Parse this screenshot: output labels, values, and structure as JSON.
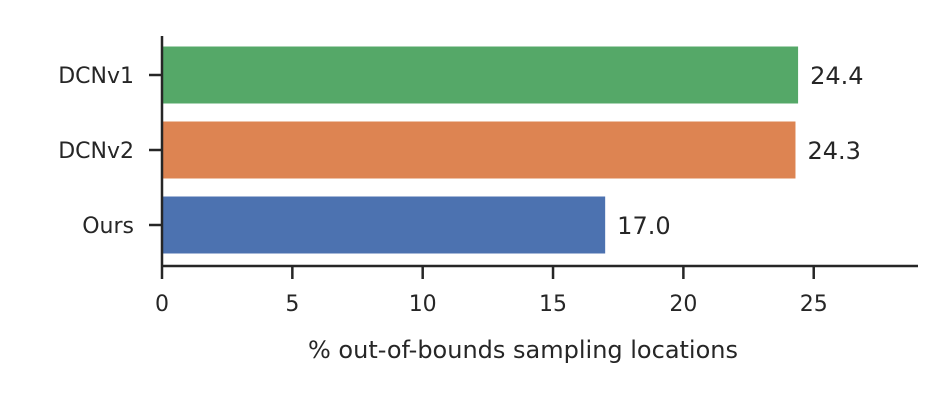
{
  "chart_data": {
    "type": "bar",
    "orientation": "horizontal",
    "categories": [
      "DCNv1",
      "DCNv2",
      "Ours"
    ],
    "values": [
      24.4,
      24.3,
      17.0
    ],
    "value_labels": [
      "24.4",
      "24.3",
      "17.0"
    ],
    "colors": [
      "#55a868",
      "#dd8452",
      "#4c72b0"
    ],
    "title": "",
    "xlabel": "% out-of-bounds sampling locations",
    "ylabel": "",
    "xlim": [
      0,
      29
    ],
    "xticks": [
      0,
      5,
      10,
      15,
      20,
      25
    ],
    "xtick_labels": [
      "0",
      "5",
      "10",
      "15",
      "20",
      "25"
    ],
    "grid": false,
    "legend": "none"
  }
}
